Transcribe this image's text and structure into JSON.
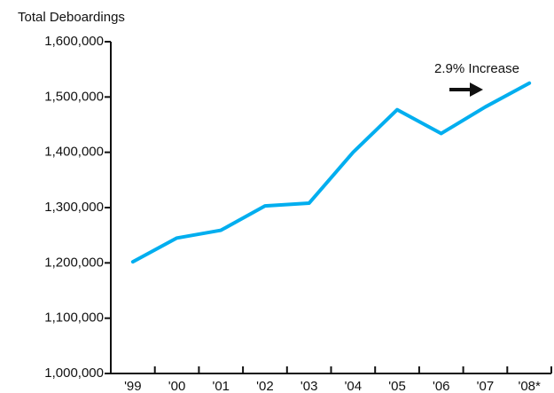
{
  "chart_data": {
    "type": "line",
    "title": "Total Deboardings",
    "categories": [
      "'99",
      "'00",
      "'01",
      "'02",
      "'03",
      "'04",
      "'05",
      "'06",
      "'07",
      "'08*"
    ],
    "series": [
      {
        "name": "Total Deboardings",
        "color": "#00aeef",
        "values": [
          1202000,
          1245000,
          1259000,
          1303000,
          1308000,
          1400000,
          1477000,
          1434000,
          1482000,
          1525000
        ]
      }
    ],
    "ylim": [
      1000000,
      1600000
    ],
    "yticks": [
      {
        "value": 1000000,
        "label": "1,000,000"
      },
      {
        "value": 1100000,
        "label": "1,100,000"
      },
      {
        "value": 1200000,
        "label": "1,200,000"
      },
      {
        "value": 1300000,
        "label": "1,300,000"
      },
      {
        "value": 1400000,
        "label": "1,400,000"
      },
      {
        "value": 1500000,
        "label": "1,500,000"
      },
      {
        "value": 1600000,
        "label": "1,600,000"
      }
    ],
    "grid": false,
    "annotations": [
      "2.9% Increase"
    ]
  }
}
